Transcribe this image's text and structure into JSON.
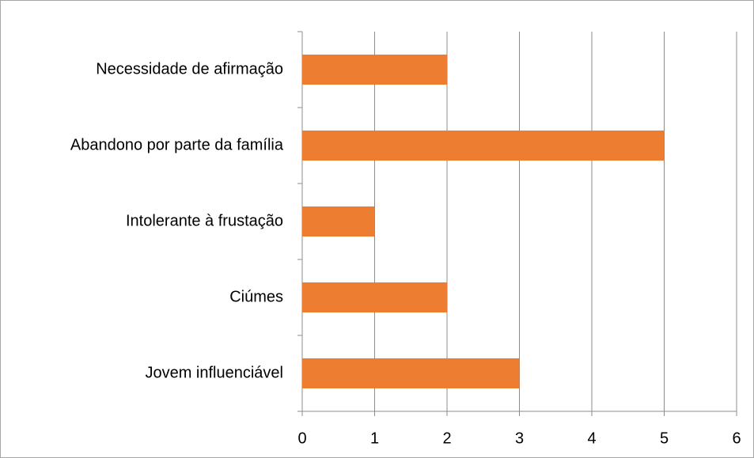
{
  "chart_data": {
    "type": "bar",
    "orientation": "horizontal",
    "categories": [
      "Necessidade de afirmação",
      "Abandono por parte da família",
      "Intolerante à frustação",
      "Ciúmes",
      "Jovem influenciável"
    ],
    "values": [
      2,
      5,
      1,
      2,
      3
    ],
    "color": "#ed7d31",
    "xlim": [
      0,
      6
    ],
    "xticks": [
      0,
      1,
      2,
      3,
      4,
      5,
      6
    ],
    "grid": true
  }
}
